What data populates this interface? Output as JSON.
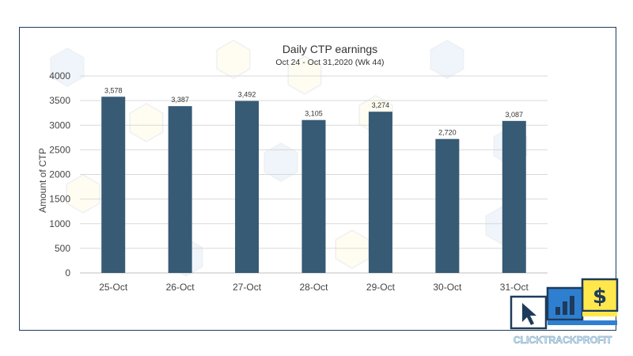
{
  "chart_data": {
    "type": "bar",
    "title": "Daily CTP earnings",
    "subtitle": "Oct 24 - Oct 31,2020 (Wk 44)",
    "ylabel": "Amount of CTP",
    "xlabel": "",
    "categories": [
      "25-Oct",
      "26-Oct",
      "27-Oct",
      "28-Oct",
      "29-Oct",
      "30-Oct",
      "31-Oct"
    ],
    "values": [
      3578,
      3387,
      3492,
      3105,
      3274,
      2720,
      3087
    ],
    "value_labels": [
      "3,578",
      "3,387",
      "3,492",
      "3,105",
      "3,274",
      "2,720",
      "3,087"
    ],
    "ylim": [
      0,
      4000
    ],
    "yticks": [
      0,
      500,
      1000,
      1500,
      2000,
      2500,
      3000,
      3500,
      4000
    ],
    "grid": true,
    "legend": "none",
    "bar_color": "#375a75"
  },
  "logo": {
    "text": "CLICKTRACKPROFIT",
    "colors": {
      "navy": "#1f3b5a",
      "blue": "#2f7fd0",
      "yellow": "#ffe74c",
      "text": "#bfe3f8"
    },
    "icons": [
      "cursor-icon",
      "bar-chart-icon",
      "dollar-icon"
    ]
  }
}
